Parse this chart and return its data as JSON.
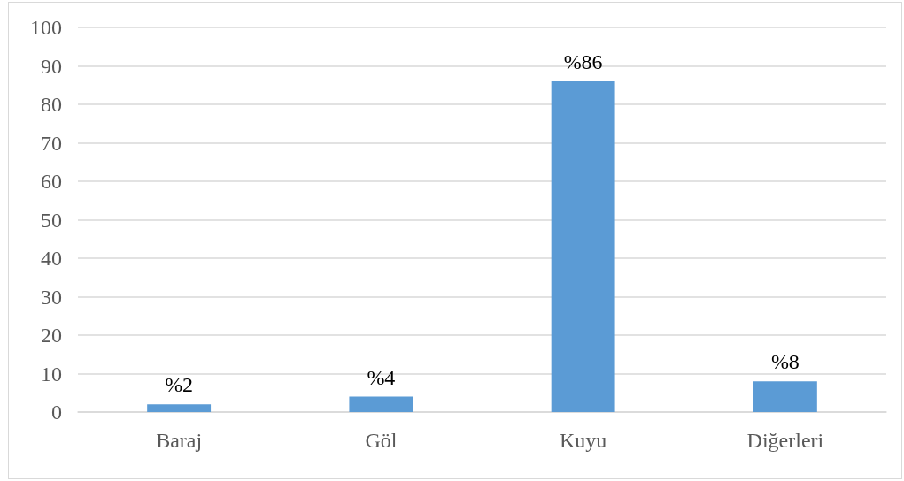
{
  "chart_data": {
    "type": "bar",
    "categories": [
      "Baraj",
      "Göl",
      "Kuyu",
      "Diğerleri"
    ],
    "values": [
      2,
      4,
      86,
      8
    ],
    "color": "#5b9bd5",
    "value_labels": [
      "%2",
      "%4",
      "%86",
      "%8"
    ],
    "ylim": [
      0,
      100
    ],
    "yticks": [
      0,
      10,
      20,
      30,
      40,
      50,
      60,
      70,
      80,
      90,
      100
    ],
    "grid": "y"
  }
}
